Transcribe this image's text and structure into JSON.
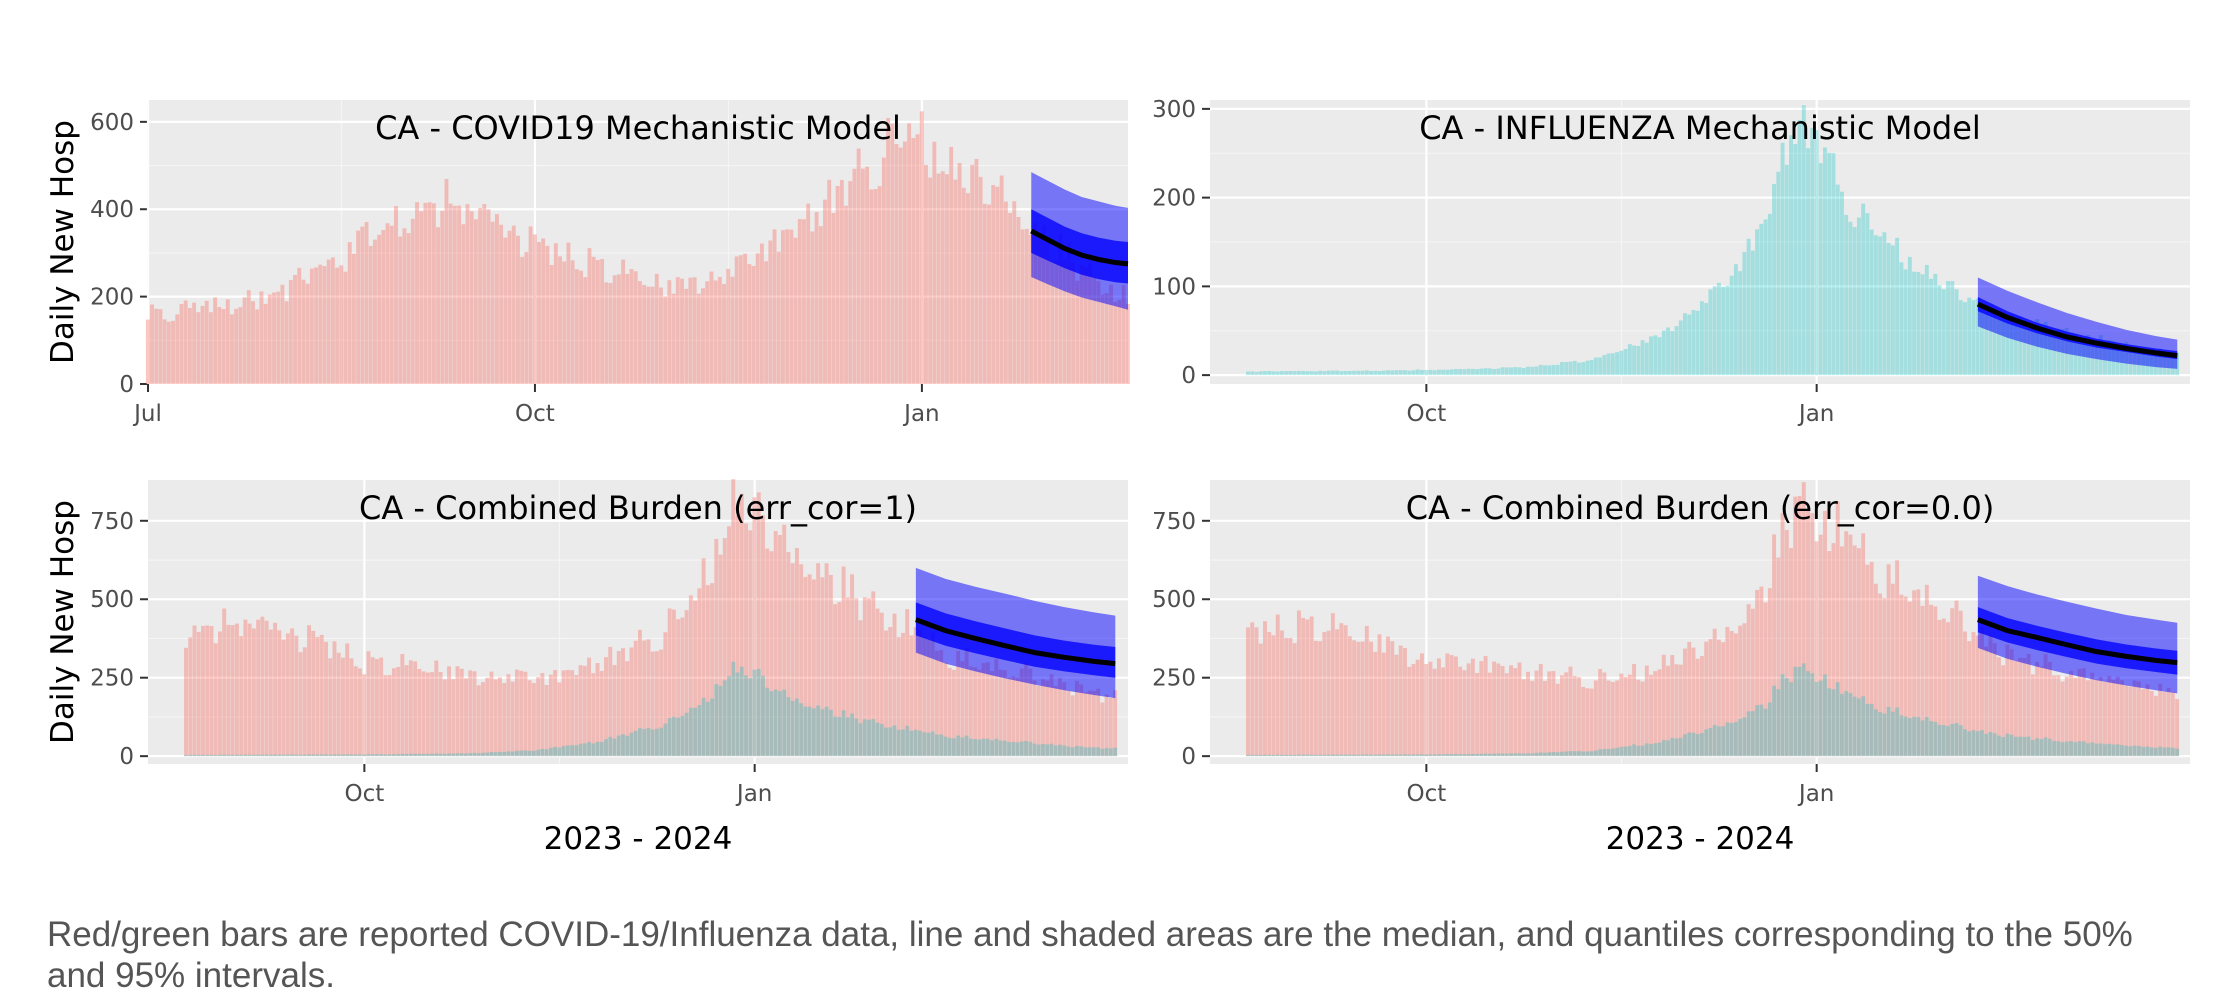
{
  "caption": "Red/green bars are reported COVID-19/Influenza data, line and shaded areas are the median, and quantiles corresponding to the 50% and 95% intervals.",
  "colors": {
    "covid_bar": "#f8766d",
    "influenza_bar": "#00bfc4",
    "forecast_band": "#0000ff",
    "median_line": "#000000",
    "panel_background": "#ebebeb"
  },
  "chart_data": [
    {
      "type": "bar",
      "title": "CA - COVID19 Mechanistic Model",
      "ylabel": "Daily New Hosp",
      "xlabel": "",
      "x_range": [
        "2023-07-01",
        "2024-02-19"
      ],
      "x_ticks": [
        {
          "date": "2023-07-01",
          "label": "Jul"
        },
        {
          "date": "2023-10-01",
          "label": "Oct"
        },
        {
          "date": "2024-01-01",
          "label": "Jan"
        }
      ],
      "ylim": [
        0,
        650
      ],
      "y_ticks": [
        0,
        200,
        400,
        600
      ],
      "grid": true,
      "legend": "none",
      "series": [
        {
          "data_role": "covid_observed",
          "start": "2023-07-01",
          "end": "2024-02-19",
          "step_days": 1,
          "knots": [
            [
              "2023-07-01",
              160
            ],
            [
              "2023-07-15",
              175
            ],
            [
              "2023-07-30",
              200
            ],
            [
              "2023-08-15",
              275
            ],
            [
              "2023-08-22",
              340
            ],
            [
              "2023-09-01",
              400
            ],
            [
              "2023-09-10",
              410
            ],
            [
              "2023-09-20",
              380
            ],
            [
              "2023-10-01",
              320
            ],
            [
              "2023-10-10",
              290
            ],
            [
              "2023-10-20",
              260
            ],
            [
              "2023-11-01",
              225
            ],
            [
              "2023-11-15",
              245
            ],
            [
              "2023-12-01",
              340
            ],
            [
              "2023-12-15",
              450
            ],
            [
              "2023-12-26",
              560
            ],
            [
              "2023-12-31",
              570
            ],
            [
              "2024-01-10",
              480
            ],
            [
              "2024-01-20",
              440
            ],
            [
              "2024-01-28",
              360
            ],
            [
              "2024-02-10",
              250
            ],
            [
              "2024-02-19",
              190
            ]
          ]
        },
        {
          "data_role": "forecast",
          "dates": [
            "2024-01-27",
            "2024-01-31",
            "2024-02-04",
            "2024-02-08",
            "2024-02-12",
            "2024-02-16",
            "2024-02-19"
          ],
          "median": [
            350,
            330,
            310,
            295,
            285,
            278,
            275
          ],
          "q25": [
            300,
            282,
            265,
            250,
            240,
            233,
            230
          ],
          "q75": [
            400,
            380,
            360,
            345,
            335,
            328,
            325
          ],
          "q025": [
            245,
            228,
            212,
            198,
            188,
            178,
            170
          ],
          "q975": [
            485,
            465,
            445,
            428,
            418,
            408,
            403
          ]
        }
      ]
    },
    {
      "type": "bar",
      "title": "CA - INFLUENZA Mechanistic Model",
      "ylabel": "",
      "xlabel": "",
      "x_range": [
        "2023-08-11",
        "2024-03-29"
      ],
      "x_ticks": [
        {
          "date": "2023-10-01",
          "label": "Oct"
        },
        {
          "date": "2024-01-01",
          "label": "Jan"
        }
      ],
      "ylim": [
        -10,
        310
      ],
      "y_ticks": [
        0,
        100,
        200,
        300
      ],
      "grid": true,
      "legend": "none",
      "series": [
        {
          "data_role": "influenza_observed",
          "start": "2023-08-20",
          "end": "2024-03-26",
          "step_days": 1,
          "knots": [
            [
              "2023-08-20",
              4
            ],
            [
              "2023-09-15",
              5
            ],
            [
              "2023-10-05",
              6
            ],
            [
              "2023-10-25",
              9
            ],
            [
              "2023-11-10",
              18
            ],
            [
              "2023-11-25",
              45
            ],
            [
              "2023-12-05",
              80
            ],
            [
              "2023-12-12",
              110
            ],
            [
              "2023-12-20",
              170
            ],
            [
              "2023-12-24",
              240
            ],
            [
              "2023-12-27",
              280
            ],
            [
              "2023-12-30",
              270
            ],
            [
              "2024-01-03",
              250
            ],
            [
              "2024-01-06",
              210
            ],
            [
              "2024-01-12",
              175
            ],
            [
              "2024-01-18",
              150
            ],
            [
              "2024-01-24",
              125
            ],
            [
              "2024-02-01",
              100
            ],
            [
              "2024-02-10",
              75
            ],
            [
              "2024-02-20",
              60
            ],
            [
              "2024-03-01",
              48
            ],
            [
              "2024-03-10",
              38
            ],
            [
              "2024-03-18",
              30
            ],
            [
              "2024-03-26",
              25
            ]
          ]
        },
        {
          "data_role": "forecast",
          "dates": [
            "2024-02-08",
            "2024-02-15",
            "2024-02-22",
            "2024-02-29",
            "2024-03-07",
            "2024-03-14",
            "2024-03-21",
            "2024-03-26"
          ],
          "median": [
            80,
            65,
            53,
            43,
            36,
            30,
            25,
            22
          ],
          "q25": [
            72,
            58,
            47,
            38,
            31,
            26,
            21,
            18
          ],
          "q75": [
            88,
            72,
            59,
            49,
            41,
            35,
            30,
            27
          ],
          "q025": [
            55,
            42,
            32,
            24,
            18,
            13,
            9,
            7
          ],
          "q975": [
            110,
            95,
            82,
            70,
            60,
            51,
            44,
            40
          ]
        }
      ]
    },
    {
      "type": "bar",
      "title": "CA - Combined Burden (err_cor=1)",
      "ylabel": "Daily New Hosp",
      "xlabel": "2023 - 2024",
      "x_range": [
        "2023-08-11",
        "2024-03-29"
      ],
      "x_ticks": [
        {
          "date": "2023-10-01",
          "label": "Oct"
        },
        {
          "date": "2024-01-01",
          "label": "Jan"
        }
      ],
      "ylim": [
        -25,
        880
      ],
      "y_ticks": [
        0,
        250,
        500,
        750
      ],
      "y_tick_labels": [
        "0",
        "250",
        "500",
        "750"
      ],
      "grid": true,
      "legend": "none",
      "series": [
        {
          "data_role": "covid_observed",
          "start": "2023-08-20",
          "end": "2024-03-26",
          "step_days": 1,
          "knots": [
            [
              "2023-08-20",
              400
            ],
            [
              "2023-09-05",
              420
            ],
            [
              "2023-09-20",
              370
            ],
            [
              "2023-10-01",
              300
            ],
            [
              "2023-10-15",
              285
            ],
            [
              "2023-11-01",
              250
            ],
            [
              "2023-11-15",
              245
            ],
            [
              "2023-12-01",
              320
            ],
            [
              "2023-12-10",
              390
            ],
            [
              "2023-12-18",
              500
            ],
            [
              "2023-12-24",
              700
            ],
            [
              "2023-12-27",
              810
            ],
            [
              "2024-01-01",
              770
            ],
            [
              "2024-01-08",
              680
            ],
            [
              "2024-01-20",
              560
            ],
            [
              "2024-02-01",
              450
            ],
            [
              "2024-02-15",
              330
            ],
            [
              "2024-03-01",
              270
            ],
            [
              "2024-03-15",
              230
            ],
            [
              "2024-03-26",
              190
            ]
          ]
        },
        {
          "data_role": "influenza_observed",
          "start": "2023-08-20",
          "end": "2024-03-26",
          "step_days": 1,
          "knots": [
            [
              "2023-08-20",
              4
            ],
            [
              "2023-09-15",
              5
            ],
            [
              "2023-10-05",
              6
            ],
            [
              "2023-10-25",
              9
            ],
            [
              "2023-11-10",
              18
            ],
            [
              "2023-11-25",
              45
            ],
            [
              "2023-12-05",
              80
            ],
            [
              "2023-12-12",
              110
            ],
            [
              "2023-12-20",
              170
            ],
            [
              "2023-12-24",
              240
            ],
            [
              "2023-12-27",
              280
            ],
            [
              "2023-12-30",
              270
            ],
            [
              "2024-01-03",
              250
            ],
            [
              "2024-01-06",
              210
            ],
            [
              "2024-01-12",
              175
            ],
            [
              "2024-01-18",
              150
            ],
            [
              "2024-01-24",
              125
            ],
            [
              "2024-02-01",
              100
            ],
            [
              "2024-02-10",
              75
            ],
            [
              "2024-02-20",
              60
            ],
            [
              "2024-03-01",
              48
            ],
            [
              "2024-03-10",
              38
            ],
            [
              "2024-03-18",
              30
            ],
            [
              "2024-03-26",
              25
            ]
          ]
        },
        {
          "data_role": "forecast",
          "dates": [
            "2024-02-08",
            "2024-02-15",
            "2024-02-22",
            "2024-02-29",
            "2024-03-07",
            "2024-03-14",
            "2024-03-21",
            "2024-03-26"
          ],
          "median": [
            435,
            400,
            375,
            352,
            330,
            315,
            302,
            295
          ],
          "q25": [
            385,
            352,
            328,
            306,
            285,
            270,
            258,
            250
          ],
          "q75": [
            490,
            455,
            430,
            407,
            385,
            368,
            355,
            348
          ],
          "q025": [
            330,
            295,
            270,
            248,
            228,
            210,
            195,
            185
          ],
          "q975": [
            600,
            565,
            540,
            518,
            495,
            475,
            458,
            448
          ]
        }
      ]
    },
    {
      "type": "bar",
      "title": "CA - Combined Burden (err_cor=0.0)",
      "ylabel": "",
      "xlabel": "2023 - 2024",
      "x_range": [
        "2023-08-11",
        "2024-03-29"
      ],
      "x_ticks": [
        {
          "date": "2023-10-01",
          "label": "Oct"
        },
        {
          "date": "2024-01-01",
          "label": "Jan"
        }
      ],
      "ylim": [
        -25,
        880
      ],
      "y_ticks": [
        0,
        250,
        500,
        750
      ],
      "y_tick_labels": [
        "0",
        "250",
        "500",
        "750"
      ],
      "grid": true,
      "legend": "none",
      "series": [
        {
          "data_role": "covid_observed",
          "start": "2023-08-20",
          "end": "2024-03-26",
          "step_days": 1,
          "knots": [
            [
              "2023-08-20",
              400
            ],
            [
              "2023-09-05",
              420
            ],
            [
              "2023-09-20",
              370
            ],
            [
              "2023-10-01",
              300
            ],
            [
              "2023-10-15",
              285
            ],
            [
              "2023-11-01",
              250
            ],
            [
              "2023-11-15",
              245
            ],
            [
              "2023-12-01",
              320
            ],
            [
              "2023-12-10",
              390
            ],
            [
              "2023-12-18",
              500
            ],
            [
              "2023-12-24",
              700
            ],
            [
              "2023-12-27",
              810
            ],
            [
              "2024-01-01",
              770
            ],
            [
              "2024-01-08",
              680
            ],
            [
              "2024-01-20",
              560
            ],
            [
              "2024-02-01",
              450
            ],
            [
              "2024-02-15",
              330
            ],
            [
              "2024-03-01",
              270
            ],
            [
              "2024-03-15",
              230
            ],
            [
              "2024-03-26",
              190
            ]
          ]
        },
        {
          "data_role": "influenza_observed",
          "start": "2023-08-20",
          "end": "2024-03-26",
          "step_days": 1,
          "knots": [
            [
              "2023-08-20",
              4
            ],
            [
              "2023-09-15",
              5
            ],
            [
              "2023-10-05",
              6
            ],
            [
              "2023-10-25",
              9
            ],
            [
              "2023-11-10",
              18
            ],
            [
              "2023-11-25",
              45
            ],
            [
              "2023-12-05",
              80
            ],
            [
              "2023-12-12",
              110
            ],
            [
              "2023-12-20",
              170
            ],
            [
              "2023-12-24",
              240
            ],
            [
              "2023-12-27",
              280
            ],
            [
              "2023-12-30",
              270
            ],
            [
              "2024-01-03",
              250
            ],
            [
              "2024-01-06",
              210
            ],
            [
              "2024-01-12",
              175
            ],
            [
              "2024-01-18",
              150
            ],
            [
              "2024-01-24",
              125
            ],
            [
              "2024-02-01",
              100
            ],
            [
              "2024-02-10",
              75
            ],
            [
              "2024-02-20",
              60
            ],
            [
              "2024-03-01",
              48
            ],
            [
              "2024-03-10",
              38
            ],
            [
              "2024-03-18",
              30
            ],
            [
              "2024-03-26",
              25
            ]
          ]
        },
        {
          "data_role": "forecast",
          "dates": [
            "2024-02-08",
            "2024-02-15",
            "2024-02-22",
            "2024-02-29",
            "2024-03-07",
            "2024-03-14",
            "2024-03-21",
            "2024-03-26"
          ],
          "median": [
            435,
            400,
            378,
            355,
            333,
            318,
            305,
            298
          ],
          "q25": [
            395,
            362,
            338,
            316,
            295,
            280,
            268,
            260
          ],
          "q75": [
            475,
            440,
            415,
            393,
            372,
            356,
            343,
            336
          ],
          "q025": [
            345,
            310,
            285,
            262,
            242,
            225,
            210,
            200
          ],
          "q975": [
            575,
            542,
            515,
            492,
            470,
            450,
            435,
            425
          ]
        }
      ]
    }
  ]
}
